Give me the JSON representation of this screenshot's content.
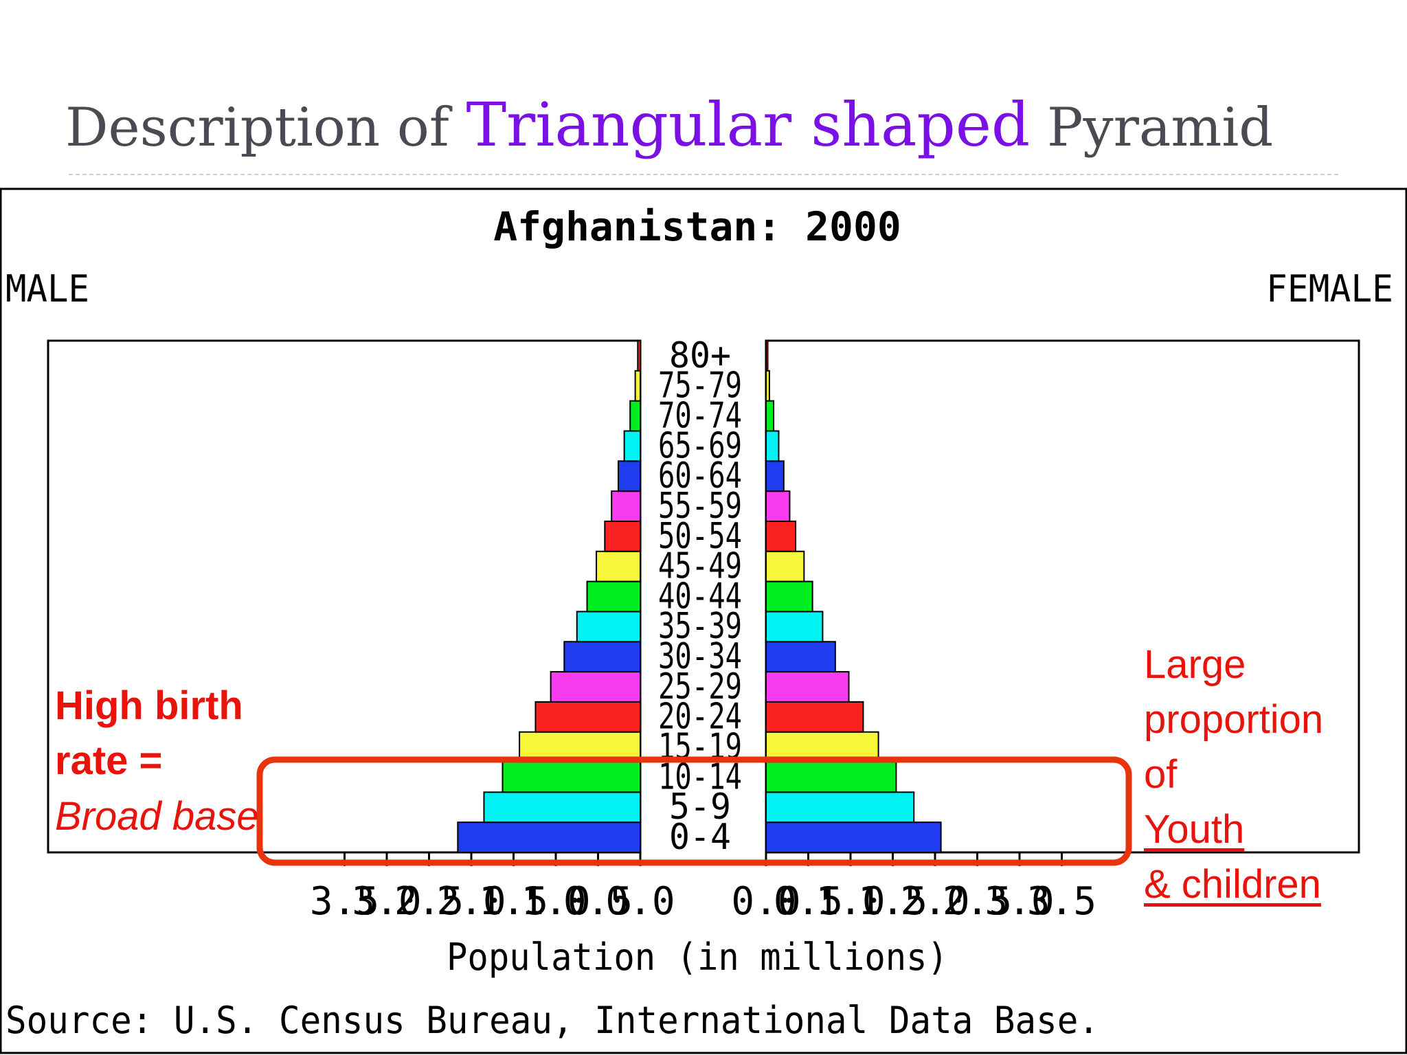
{
  "slide": {
    "title_prefix": "Description of ",
    "title_accent": "Triangular shaped",
    "title_suffix": " Pyramid",
    "accent_color": "#7a10e6",
    "title_color": "#4a4a52"
  },
  "annotations": {
    "left_line1": "High birth",
    "left_line2": "rate =",
    "left_line3": "Broad base",
    "right_line1": "Large",
    "right_line2": "proportion",
    "right_line3_prefix": "of ",
    "right_line3_underlined": "Youth",
    "right_line4": "& children",
    "color": "#e8140c"
  },
  "chart_data": {
    "type": "bar",
    "title": "Afghanistan: 2000",
    "left_label": "MALE",
    "right_label": "FEMALE",
    "xlabel": "Population (in millions)",
    "source": "Source: U.S. Census Bureau, International Data Base.",
    "xlim": [
      0,
      3.5
    ],
    "x_ticks": [
      "3.5",
      "3.0",
      "2.5",
      "2.0",
      "1.5",
      "1.0",
      "0.5",
      "0.0"
    ],
    "x_ticks_right": [
      "0.0",
      "0.5",
      "1.0",
      "1.5",
      "2.0",
      "2.5",
      "3.0",
      "3.5"
    ],
    "categories": [
      "0-4",
      "5-9",
      "10-14",
      "15-19",
      "20-24",
      "25-29",
      "30-34",
      "35-39",
      "40-44",
      "45-49",
      "50-54",
      "55-59",
      "60-64",
      "65-69",
      "70-74",
      "75-79",
      "80+"
    ],
    "series": [
      {
        "name": "MALE",
        "values": [
          2.16,
          1.85,
          1.63,
          1.43,
          1.24,
          1.06,
          0.9,
          0.75,
          0.63,
          0.52,
          0.42,
          0.34,
          0.26,
          0.19,
          0.12,
          0.06,
          0.03
        ]
      },
      {
        "name": "FEMALE",
        "values": [
          2.07,
          1.75,
          1.54,
          1.33,
          1.15,
          0.98,
          0.82,
          0.67,
          0.55,
          0.45,
          0.35,
          0.28,
          0.21,
          0.15,
          0.09,
          0.04,
          0.02
        ]
      }
    ],
    "bar_colors": [
      "#1f3cf0",
      "#00f2f2",
      "#00ee22",
      "#f6f63a",
      "#fa2222",
      "#f73cf0",
      "#1f3cf0",
      "#00f2f2",
      "#00ee22",
      "#f6f63a",
      "#fa2222",
      "#f73cf0",
      "#1f3cf0",
      "#00f2f2",
      "#00ee22",
      "#f6f63a",
      "#fa2222"
    ],
    "highlight_color": "#e8340c",
    "grid": false
  }
}
